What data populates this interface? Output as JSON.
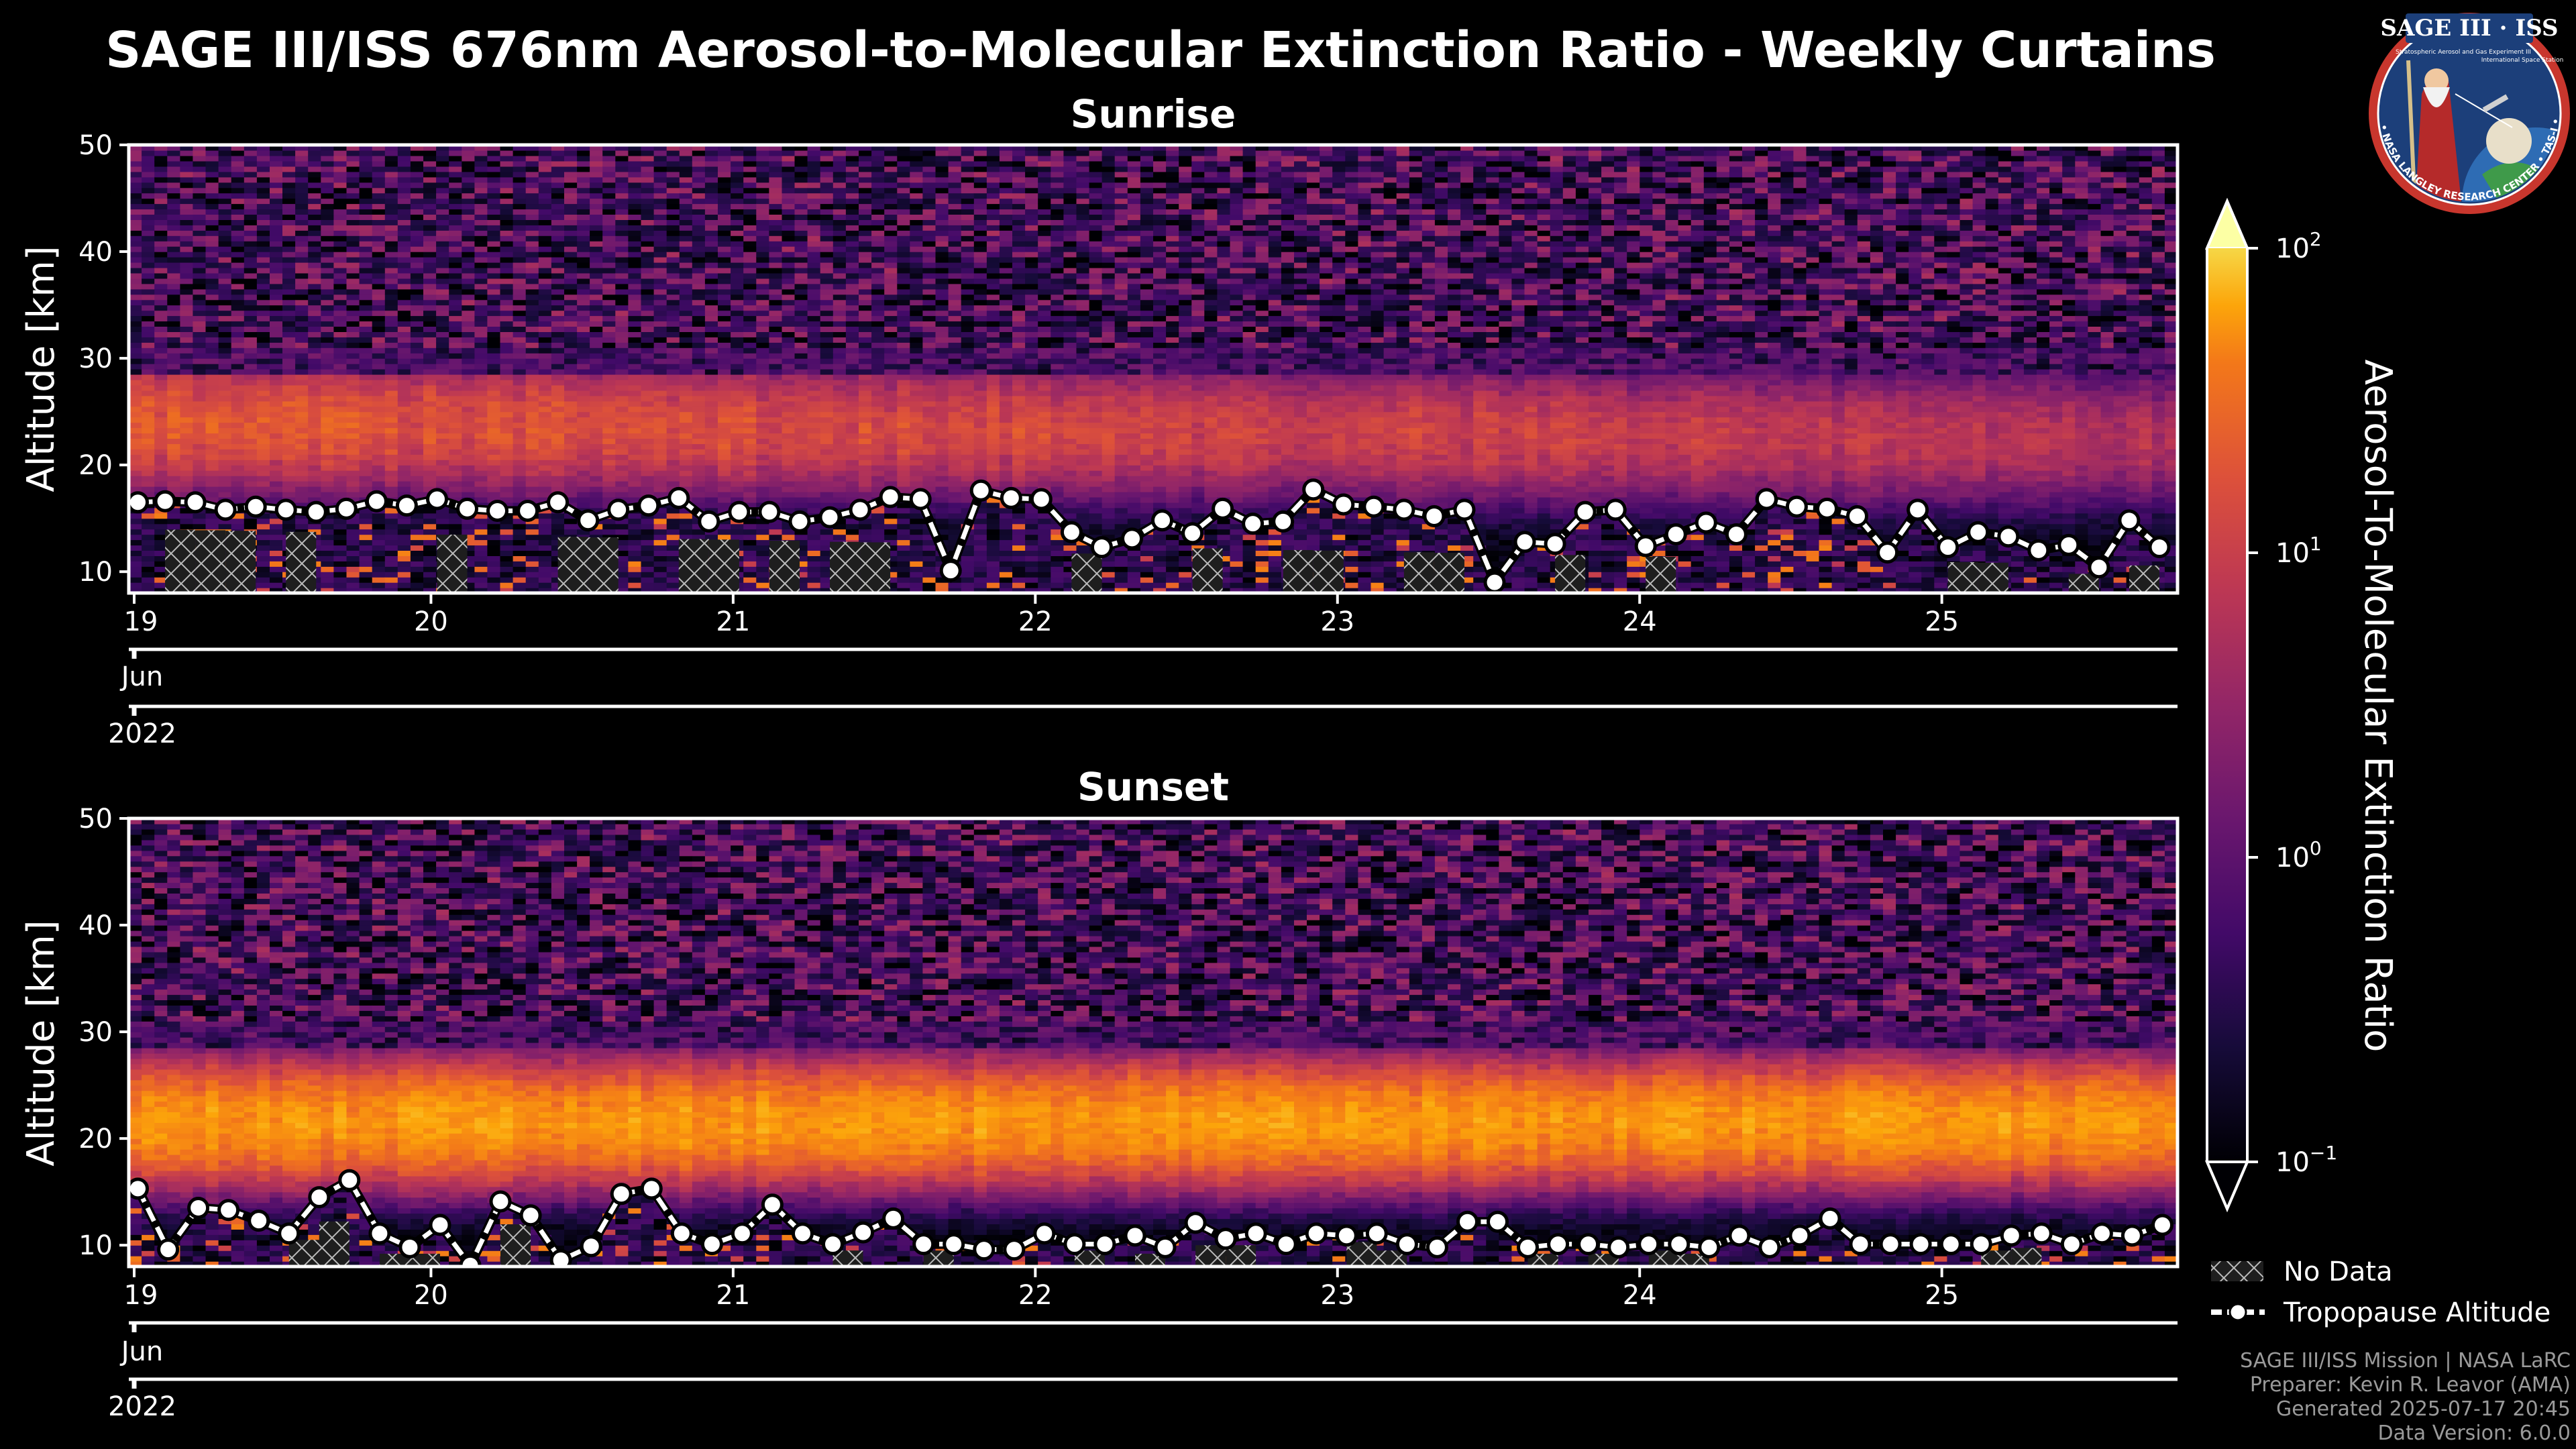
{
  "chart_data": {
    "type": "heatmap",
    "title": "SAGE III/ISS 676nm Aerosol-to-Molecular Extinction Ratio - Weekly Curtains",
    "colorbar": {
      "label": "Aerosol-To-Molecular Extinction Ratio",
      "scale": "log",
      "range": [
        0.1,
        100
      ],
      "ticks": [
        {
          "value": 0.1,
          "label_base": "10",
          "label_exp": "−1"
        },
        {
          "value": 1,
          "label_base": "10",
          "label_exp": "0"
        },
        {
          "value": 10,
          "label_base": "10",
          "label_exp": "1"
        },
        {
          "value": 100,
          "label_base": "10",
          "label_exp": "2"
        }
      ],
      "colormap": "inferno",
      "extend": "both"
    },
    "legend": {
      "placement": "bottom-right",
      "entries": [
        {
          "label": "No Data",
          "kind": "hatch"
        },
        {
          "label": "Tropopause Altitude",
          "kind": "line-marker"
        }
      ]
    },
    "panels": [
      {
        "name": "sunrise",
        "title": "Sunrise",
        "ylabel": "Altitude [km]",
        "ylim": [
          8,
          50
        ],
        "yticks": [
          10,
          20,
          30,
          40,
          50
        ],
        "xlim": [
          19.0,
          25.78
        ],
        "day_ticks": [
          19,
          20,
          21,
          22,
          23,
          24,
          25
        ],
        "month_label": "Jun",
        "year_label": "2022",
        "aerosol_layer": {
          "peak_altitude_km": [
            24.0,
            22.5
          ],
          "peak_ratio": [
            7.0,
            2.5
          ],
          "width_km": 4.5
        },
        "tropopause": {
          "time": [
            19.03,
            19.12,
            19.22,
            19.32,
            19.42,
            19.52,
            19.62,
            19.72,
            19.82,
            19.92,
            20.02,
            20.12,
            20.22,
            20.32,
            20.42,
            20.52,
            20.62,
            20.72,
            20.82,
            20.92,
            21.02,
            21.12,
            21.22,
            21.32,
            21.42,
            21.52,
            21.62,
            21.72,
            21.82,
            21.92,
            22.02,
            22.12,
            22.22,
            22.32,
            22.42,
            22.52,
            22.62,
            22.72,
            22.82,
            22.92,
            23.02,
            23.12,
            23.22,
            23.32,
            23.42,
            23.52,
            23.62,
            23.72,
            23.82,
            23.92,
            24.02,
            24.12,
            24.22,
            24.32,
            24.42,
            24.52,
            24.62,
            24.72,
            24.82,
            24.92,
            25.02,
            25.12,
            25.22,
            25.32,
            25.42,
            25.52,
            25.62,
            25.72
          ],
          "altitude_km": [
            16.5,
            16.6,
            16.5,
            15.8,
            16.1,
            15.8,
            15.6,
            15.9,
            16.6,
            16.2,
            16.8,
            15.9,
            15.7,
            15.7,
            16.5,
            14.8,
            15.8,
            16.2,
            16.9,
            14.7,
            15.6,
            15.6,
            14.7,
            15.1,
            15.8,
            17.0,
            16.8,
            10.1,
            17.6,
            16.9,
            16.8,
            13.7,
            12.3,
            13.1,
            14.8,
            13.6,
            15.9,
            14.5,
            14.7,
            17.7,
            16.3,
            16.1,
            15.8,
            15.2,
            15.8,
            9.0,
            12.8,
            12.6,
            15.6,
            15.8,
            12.4,
            13.5,
            14.6,
            13.5,
            16.8,
            16.1,
            15.9,
            15.2,
            11.8,
            15.8,
            12.3,
            13.7,
            13.3,
            12.0,
            12.5,
            10.4,
            14.8,
            12.3
          ]
        },
        "no_data_altitude_km": [
          14.0,
          10.5
        ]
      },
      {
        "name": "sunset",
        "title": "Sunset",
        "ylabel": "Altitude [km]",
        "ylim": [
          8,
          50
        ],
        "yticks": [
          10,
          20,
          30,
          40,
          50
        ],
        "xlim": [
          19.0,
          25.78
        ],
        "day_ticks": [
          19,
          20,
          21,
          22,
          23,
          24,
          25
        ],
        "month_label": "Jun",
        "year_label": "2022",
        "aerosol_layer": {
          "peak_altitude_km": [
            21.5,
            21.5
          ],
          "peak_ratio": [
            20.0,
            20.0
          ],
          "width_km": 4.0
        },
        "tropopause": {
          "time": [
            19.03,
            19.13,
            19.23,
            19.33,
            19.43,
            19.53,
            19.63,
            19.73,
            19.83,
            19.93,
            20.03,
            20.13,
            20.23,
            20.33,
            20.43,
            20.53,
            20.63,
            20.73,
            20.83,
            20.93,
            21.03,
            21.13,
            21.23,
            21.33,
            21.43,
            21.53,
            21.63,
            21.73,
            21.83,
            21.93,
            22.03,
            22.13,
            22.23,
            22.33,
            22.43,
            22.53,
            22.63,
            22.73,
            22.83,
            22.93,
            23.03,
            23.13,
            23.23,
            23.33,
            23.43,
            23.53,
            23.63,
            23.73,
            23.83,
            23.93,
            24.03,
            24.13,
            24.23,
            24.33,
            24.43,
            24.53,
            24.63,
            24.73,
            24.83,
            24.93,
            25.03,
            25.13,
            25.23,
            25.33,
            25.43,
            25.53,
            25.63,
            25.73
          ],
          "altitude_km": [
            15.3,
            9.6,
            13.5,
            13.3,
            12.3,
            11.1,
            14.5,
            16.1,
            11.1,
            9.8,
            11.9,
            8.1,
            14.1,
            12.8,
            8.6,
            9.9,
            14.8,
            15.3,
            11.1,
            10.1,
            11.1,
            13.8,
            11.1,
            10.1,
            11.2,
            12.5,
            10.1,
            10.1,
            9.6,
            9.6,
            11.1,
            10.1,
            10.1,
            10.9,
            9.8,
            12.1,
            10.6,
            11.1,
            10.1,
            11.1,
            10.9,
            11.1,
            10.1,
            9.8,
            12.2,
            12.2,
            9.8,
            10.1,
            10.1,
            9.8,
            10.1,
            10.1,
            9.8,
            10.9,
            9.8,
            10.9,
            12.5,
            10.1,
            10.1,
            10.1,
            10.1,
            10.1,
            10.9,
            11.1,
            10.1,
            11.1,
            10.9,
            11.9
          ]
        },
        "no_data_altitude_km": [
          12.5,
          9.5
        ]
      }
    ]
  },
  "credits": {
    "line1": "SAGE III/ISS Mission | NASA LaRC",
    "line2": "Preparer: Kevin R. Leavor (AMA)",
    "line3": "Generated 2025-07-17 20:45",
    "line4": "Data Version: 6.0.0"
  },
  "logo": {
    "name": "SAGE III · ISS",
    "ring_text": "BALL • NASA LANGLEY RESEARCH CENTER • TAS-I • ESA",
    "subtitle": "Stratospheric Aerosol and Gas Experiment III",
    "subtitle2": "International Space Station"
  }
}
